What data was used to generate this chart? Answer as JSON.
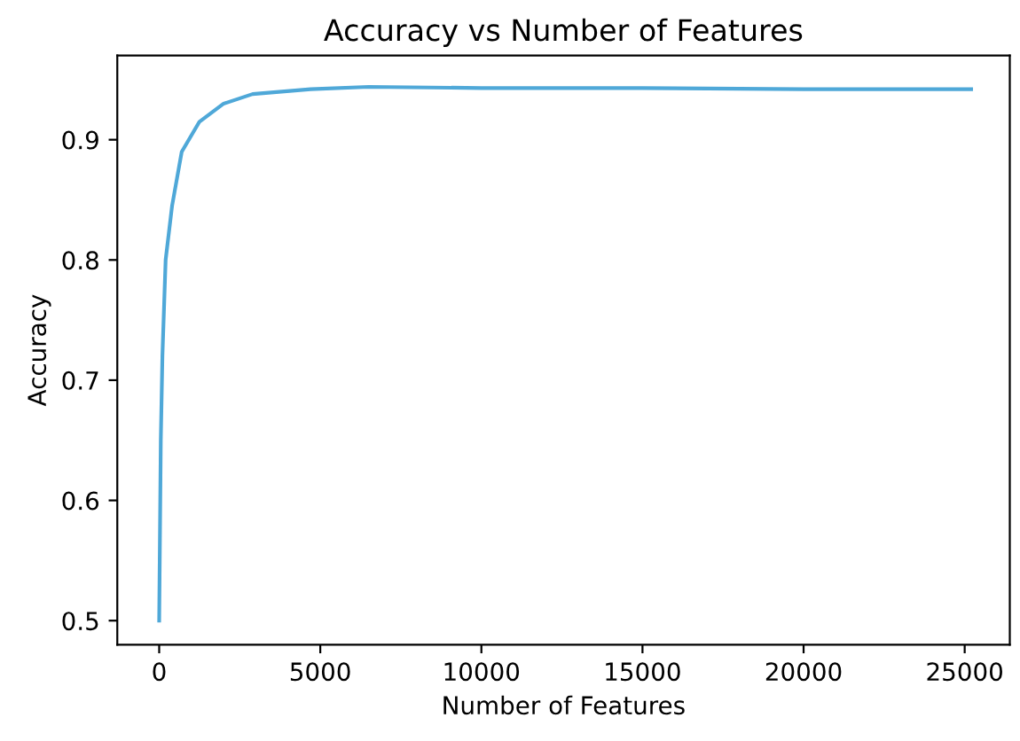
{
  "chart_data": {
    "type": "line",
    "title": "Accuracy vs Number of Features",
    "xlabel": "Number of Features",
    "ylabel": "Accuracy",
    "x": [
      0,
      50,
      100,
      200,
      400,
      700,
      1250,
      2000,
      2900,
      4700,
      6500,
      10000,
      15000,
      20000,
      25200
    ],
    "series": [
      {
        "color": "#4fa8d8",
        "values": [
          0.5,
          0.65,
          0.72,
          0.8,
          0.845,
          0.89,
          0.915,
          0.93,
          0.938,
          0.942,
          0.944,
          0.943,
          0.943,
          0.942,
          0.942
        ]
      }
    ],
    "xlim": [
      -1300,
      26400
    ],
    "ylim": [
      0.48,
      0.97
    ],
    "xticks": [
      0,
      5000,
      10000,
      15000,
      20000,
      25000
    ],
    "yticks": [
      0.5,
      0.6,
      0.7,
      0.8,
      0.9
    ],
    "grid": false,
    "legend": false
  }
}
